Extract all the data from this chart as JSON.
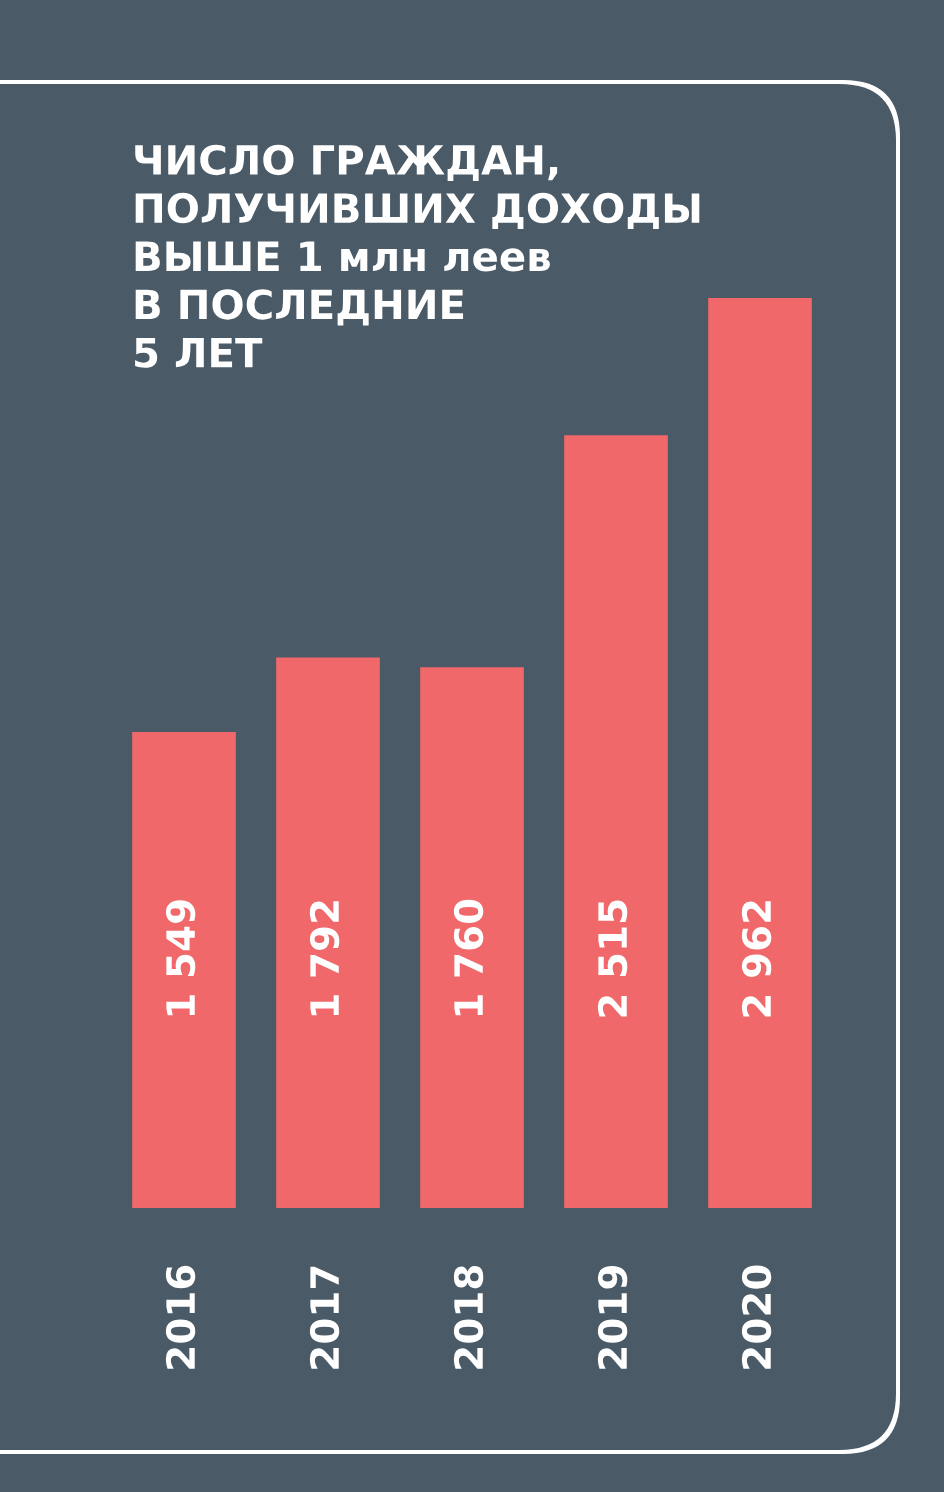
{
  "chart_data": {
    "type": "bar",
    "title": "ЧИСЛО ГРАЖДАН,\nПОЛУЧИВШИХ ДОХОДЫ\nВЫШЕ 1 млн леев\nВ ПОСЛЕДНИЕ\n5 ЛЕТ",
    "categories": [
      "2016",
      "2017",
      "2018",
      "2019",
      "2020"
    ],
    "values": [
      1549,
      1792,
      1760,
      2515,
      2962
    ],
    "value_labels": [
      "1 549",
      "1 792",
      "1 760",
      "2 515",
      "2 962"
    ],
    "color": "#f06869"
  }
}
